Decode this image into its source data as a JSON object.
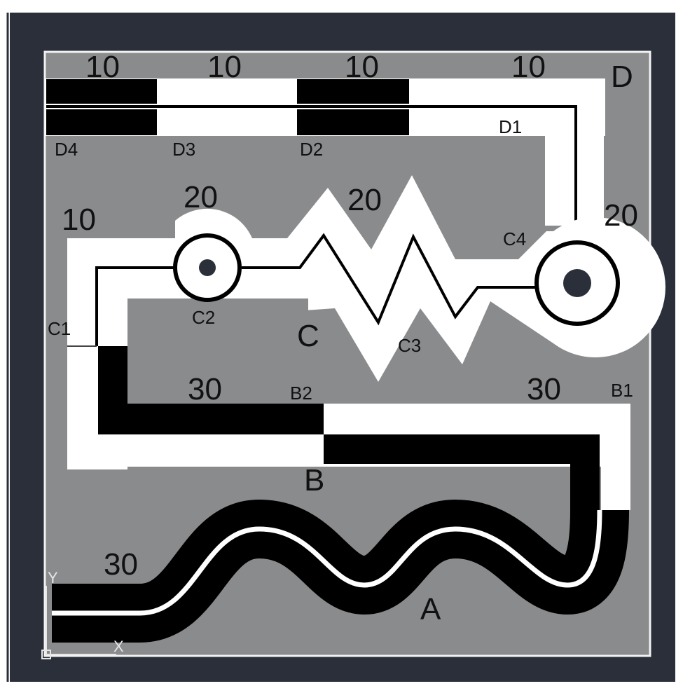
{
  "colors": {
    "frame": "#2b2f3a",
    "board": "#8a8b8d",
    "board_border": "#f2f2f2",
    "conductor_white": "#ffffff",
    "conductor_black": "#000000",
    "text": "#111111",
    "pad_dot": "#2b2f3a"
  },
  "section_labels": {
    "a": "A",
    "b": "B",
    "c": "C",
    "d": "D"
  },
  "point_labels": {
    "d1": "D1",
    "d2": "D2",
    "d3": "D3",
    "d4": "D4",
    "c1": "C1",
    "c2": "C2",
    "c3": "C3",
    "c4": "C4",
    "b1": "B1",
    "b2": "B2"
  },
  "width_labels": {
    "d_seg1": "10",
    "d_seg2": "10",
    "d_seg3": "10",
    "d_seg4": "10",
    "c_left": "10",
    "c_pad_left": "20",
    "c_zigzag": "20",
    "c_pad_right": "20",
    "b_left": "30",
    "b_right": "30",
    "a": "30"
  },
  "axis_labels": {
    "y": "Y",
    "x": "X"
  },
  "icons": [
    "ucs-origin-icon",
    "pad-left-icon",
    "pad-right-icon"
  ]
}
